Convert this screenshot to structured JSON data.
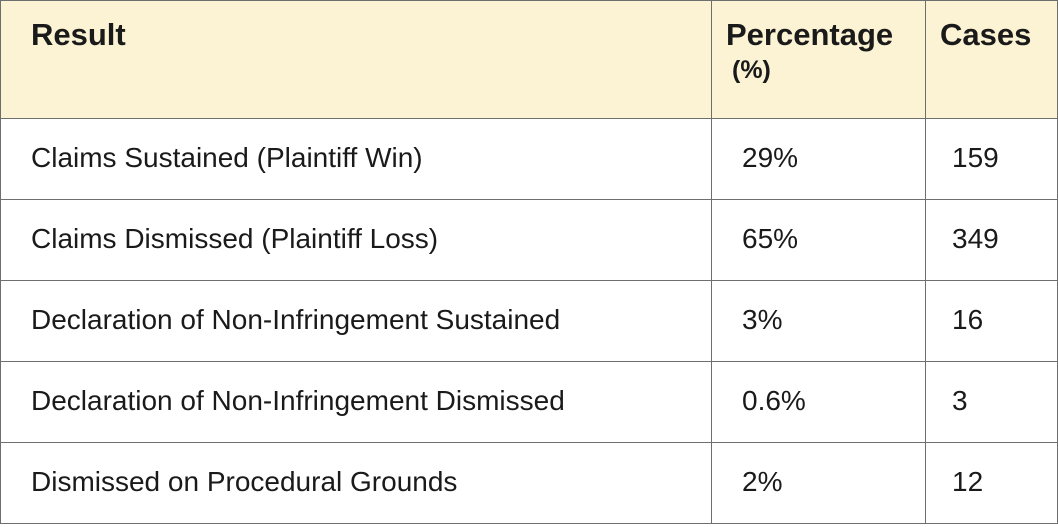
{
  "table": {
    "headers": {
      "result": "Result",
      "percentage": "Percentage",
      "percentage_unit": "(%)",
      "cases": "Cases"
    },
    "rows": [
      {
        "result": "Claims Sustained (Plaintiff Win)",
        "percentage": "29%",
        "cases": "159"
      },
      {
        "result": "Claims Dismissed (Plaintiff Loss)",
        "percentage": "65%",
        "cases": "349"
      },
      {
        "result": "Declaration of Non-Infringement Sustained",
        "percentage": "3%",
        "cases": "16"
      },
      {
        "result": "Declaration of Non-Infringement Dismissed",
        "percentage": "0.6%",
        "cases": "3"
      },
      {
        "result": "Dismissed on Procedural Grounds",
        "percentage": "2%",
        "cases": "12"
      }
    ]
  }
}
